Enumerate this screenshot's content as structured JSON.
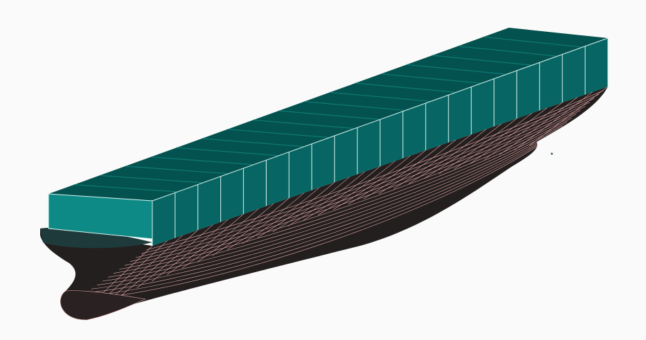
{
  "model": {
    "colors": {
      "background": "#fafafa",
      "deck_top": "#04524f",
      "deck_band": "#0c6e69",
      "container_side": "#076663",
      "container_end": "#0e8a86",
      "container_edge": "#d8f4f2",
      "hull_fill": "#231f1f",
      "hull_mesh": "#e8a8a8",
      "hull_flat": "#1e3a3a"
    },
    "container_bays": 20,
    "deck_lines": 18,
    "hull_waterlines": 14,
    "hull_stations": 30
  }
}
